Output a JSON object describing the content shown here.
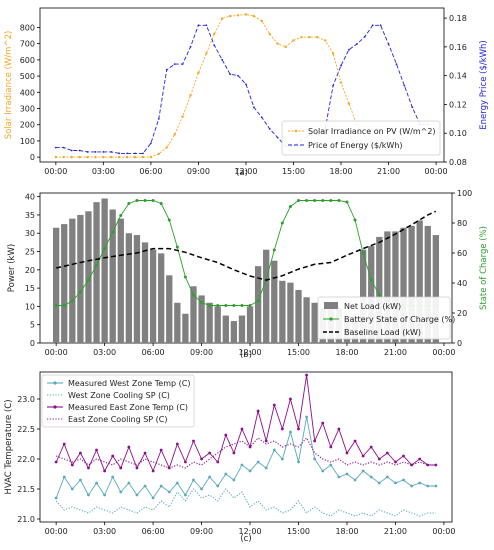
{
  "time_ticks": [
    "00:00",
    "03:00",
    "06:00",
    "09:00",
    "12:00",
    "15:00",
    "18:00",
    "21:00",
    "00:00"
  ],
  "colors": {
    "pv": "#f5a623",
    "price": "#2222dd",
    "net_bar": "#808080",
    "soc": "#2ca02c",
    "baseline": "#000000",
    "west": "#5aa9bd",
    "east": "#8b0e8b"
  },
  "chart_data": [
    {
      "type": "line",
      "caption": "(a)",
      "x_unit": "hour",
      "xlim": [
        -1,
        24.5
      ],
      "left_axis": {
        "label": "Solar Irradiance (W/m^2)",
        "ylim": [
          -30,
          920
        ],
        "ticks": [
          "0",
          "100",
          "200",
          "300",
          "400",
          "500",
          "600",
          "700",
          "800"
        ],
        "tick_values": [
          0,
          100,
          200,
          300,
          400,
          500,
          600,
          700,
          800
        ]
      },
      "right_axis": {
        "label": "Energy Price ($/kWh)",
        "ylim": [
          0.08,
          0.187
        ],
        "ticks": [
          "0.08",
          "0.10",
          "0.12",
          "0.14",
          "0.16",
          "0.18"
        ],
        "tick_values": [
          0.08,
          0.1,
          0.12,
          0.14,
          0.16,
          0.18
        ]
      },
      "legend": [
        "Solar Irradiance on PV (W/m^2)",
        "Price of Energy ($/kWh)"
      ],
      "legend_position": "lower-right",
      "series": [
        {
          "name": "Solar Irradiance on PV (W/m^2)",
          "axis": "left",
          "x": [
            0,
            0.5,
            1,
            1.5,
            2,
            2.5,
            3,
            3.5,
            4,
            4.5,
            5,
            5.5,
            6,
            6.5,
            7,
            7.5,
            8,
            8.5,
            9,
            9.5,
            10,
            10.5,
            11,
            11.5,
            12,
            12.5,
            13,
            13.5,
            14,
            14.5,
            15,
            15.5,
            16,
            16.5,
            17,
            17.5,
            18,
            18.5,
            19,
            19.5
          ],
          "y": [
            0,
            0,
            0,
            0,
            0,
            0,
            0,
            0,
            0,
            0,
            0,
            0,
            0,
            20,
            60,
            140,
            250,
            380,
            520,
            640,
            760,
            855,
            870,
            875,
            880,
            870,
            840,
            760,
            700,
            680,
            720,
            740,
            740,
            740,
            720,
            640,
            460,
            330,
            200,
            130
          ]
        },
        {
          "name": "Price of Energy ($/kWh)",
          "axis": "right",
          "x": [
            0,
            0.5,
            1,
            1.5,
            2,
            2.5,
            3,
            3.5,
            4,
            4.5,
            5,
            5.5,
            6,
            6.5,
            7,
            7.5,
            8,
            8.5,
            9,
            9.5,
            10,
            10.5,
            11,
            11.5,
            12,
            12.5,
            13,
            13.5,
            14,
            14.5,
            15,
            15.5,
            16,
            16.5,
            17,
            17.5,
            18,
            18.5,
            19,
            19.5,
            20,
            20.5,
            21,
            21.5,
            22,
            22.5,
            23,
            23.5
          ],
          "y": [
            0.09,
            0.09,
            0.088,
            0.088,
            0.087,
            0.087,
            0.087,
            0.087,
            0.086,
            0.086,
            0.086,
            0.086,
            0.093,
            0.11,
            0.144,
            0.148,
            0.148,
            0.16,
            0.175,
            0.175,
            0.161,
            0.151,
            0.141,
            0.14,
            0.134,
            0.118,
            0.111,
            0.103,
            0.097,
            0.091,
            0.091,
            0.095,
            0.099,
            0.099,
            0.103,
            0.133,
            0.147,
            0.158,
            0.162,
            0.167,
            0.175,
            0.175,
            0.162,
            0.148,
            0.133,
            0.118,
            0.106,
            0.106
          ]
        }
      ]
    },
    {
      "type": "bar",
      "caption": "(b)",
      "x_unit": "hour",
      "xlim": [
        -1,
        24.5
      ],
      "left_axis": {
        "label": "Power (kW)",
        "ylim": [
          0,
          41
        ],
        "ticks": [
          "0",
          "5",
          "10",
          "15",
          "20",
          "25",
          "30",
          "35",
          "40"
        ],
        "tick_values": [
          0,
          5,
          10,
          15,
          20,
          25,
          30,
          35,
          40
        ]
      },
      "right_axis": {
        "label": "State of Charge (%)",
        "ylim": [
          0,
          100
        ],
        "ticks": [
          "0",
          "20",
          "40",
          "60",
          "80",
          "100"
        ],
        "tick_values": [
          0,
          20,
          40,
          60,
          80,
          100
        ]
      },
      "legend": [
        "Net Load (kW)",
        "Battery State of Charge (%)",
        "Baseline Load (kW)"
      ],
      "legend_position": "lower-right",
      "series": [
        {
          "name": "Net Load (kW)",
          "type": "bar",
          "axis": "left",
          "x": [
            0,
            0.5,
            1,
            1.5,
            2,
            2.5,
            3,
            3.5,
            4,
            4.5,
            5,
            5.5,
            6,
            6.5,
            7,
            7.5,
            8,
            8.5,
            9,
            9.5,
            10,
            10.5,
            11,
            11.5,
            12,
            12.5,
            13,
            13.5,
            14,
            14.5,
            15,
            15.5,
            16,
            16.5,
            17,
            17.5,
            18,
            18.5,
            19,
            19.5,
            20,
            20.5,
            21,
            21.5,
            22,
            22.5,
            23,
            23.5
          ],
          "y": [
            31.5,
            32.5,
            34,
            35,
            36,
            38.5,
            39.5,
            36.5,
            34,
            30,
            29.5,
            27.5,
            25.5,
            24.5,
            18.5,
            11,
            8,
            15.5,
            13,
            11,
            10,
            7.5,
            6,
            7.5,
            10,
            21,
            25.5,
            22.5,
            17,
            16.5,
            14.5,
            12.5,
            11,
            9.5,
            10,
            9.5,
            6.5,
            7,
            25.5,
            26.5,
            29,
            30.5,
            30.5,
            31.5,
            32,
            33.5,
            32,
            29.5
          ]
        },
        {
          "name": "Battery State of Charge (%)",
          "type": "line",
          "axis": "right",
          "x": [
            0,
            0.5,
            1,
            1.5,
            2,
            2.5,
            3,
            3.5,
            4,
            4.5,
            5,
            5.5,
            6,
            6.5,
            7,
            7.5,
            8,
            8.5,
            9,
            9.5,
            10,
            10.5,
            11,
            11.5,
            12,
            12.5,
            13,
            13.5,
            14,
            14.5,
            15,
            15.5,
            16,
            16.5,
            17,
            17.5,
            18,
            18.5,
            19,
            19.5,
            20,
            20.5,
            21,
            21.5,
            22,
            22.5,
            23,
            23.5
          ],
          "y": [
            25,
            25,
            28,
            34,
            42,
            52,
            63,
            74,
            85,
            93,
            95,
            95,
            95,
            93,
            82,
            64,
            44,
            32,
            27,
            25,
            25,
            25,
            25,
            25,
            25,
            28,
            42,
            62,
            80,
            91,
            95,
            95,
            95,
            95,
            95,
            95,
            94,
            82,
            60,
            42,
            32,
            27,
            25,
            25,
            25,
            25,
            25,
            25
          ]
        },
        {
          "name": "Baseline Load (kW)",
          "type": "line",
          "axis": "left",
          "x": [
            0,
            1,
            2,
            3,
            4,
            5,
            6,
            7,
            8,
            9,
            10,
            11,
            12,
            13,
            14,
            15,
            16,
            17,
            18,
            19,
            20,
            21,
            22,
            23,
            23.5
          ],
          "y": [
            20.5,
            21.5,
            22.5,
            23.3,
            24,
            24.6,
            25.8,
            25.8,
            24.8,
            23.3,
            22,
            20,
            18.3,
            17.2,
            18.4,
            20.2,
            21.5,
            22,
            24,
            25.8,
            27.5,
            29.8,
            32.3,
            35,
            36
          ]
        }
      ]
    },
    {
      "type": "line",
      "caption": "(c)",
      "x_unit": "hour",
      "xlim": [
        -1,
        24.5
      ],
      "ylabel": "HVAC Temperature (C)",
      "ylim": [
        20.95,
        23.45
      ],
      "ticks": [
        "21.0",
        "21.5",
        "22.0",
        "22.5",
        "23.0"
      ],
      "tick_values": [
        21.0,
        21.5,
        22.0,
        22.5,
        23.0
      ],
      "legend": [
        "Measured West Zone Temp (C)",
        "West Zone Cooling SP (C)",
        "Measured East Zone Temp (C)",
        "East Zone Cooling SP (C)"
      ],
      "legend_position": "upper-left",
      "series": [
        {
          "name": "Measured West Zone Temp (C)",
          "style": "solid-markers",
          "x": [
            0,
            0.5,
            1,
            1.5,
            2,
            2.5,
            3,
            3.5,
            4,
            4.5,
            5,
            5.5,
            6,
            6.5,
            7,
            7.5,
            8,
            8.5,
            9,
            9.5,
            10,
            10.5,
            11,
            11.5,
            12,
            12.5,
            13,
            13.5,
            14,
            14.5,
            15,
            15.5,
            16,
            16.5,
            17,
            17.5,
            18,
            18.5,
            19,
            19.5,
            20,
            20.5,
            21,
            21.5,
            22,
            22.5,
            23,
            23.5
          ],
          "y": [
            21.35,
            21.7,
            21.5,
            21.65,
            21.4,
            21.6,
            21.4,
            21.7,
            21.45,
            21.6,
            21.4,
            21.55,
            21.35,
            21.55,
            21.45,
            21.6,
            21.4,
            21.65,
            21.5,
            21.7,
            21.55,
            21.75,
            21.65,
            21.9,
            21.8,
            21.95,
            21.85,
            22.15,
            22.0,
            22.45,
            21.95,
            22.7,
            22.0,
            21.8,
            21.9,
            21.7,
            21.75,
            21.65,
            21.8,
            21.7,
            21.6,
            21.7,
            21.6,
            21.65,
            21.55,
            21.6,
            21.55,
            21.55
          ]
        },
        {
          "name": "West Zone Cooling SP (C)",
          "style": "dotted",
          "x": [
            0,
            0.5,
            1,
            1.5,
            2,
            2.5,
            3,
            3.5,
            4,
            4.5,
            5,
            5.5,
            6,
            6.5,
            7,
            7.5,
            8,
            8.5,
            9,
            9.5,
            10,
            10.5,
            11,
            11.5,
            12,
            12.5,
            13,
            13.5,
            14,
            14.5,
            15,
            15.5,
            16,
            16.5,
            17,
            17.5,
            18,
            18.5,
            19,
            19.5,
            20,
            20.5,
            21,
            21.5,
            22,
            22.5,
            23,
            23.5
          ],
          "y": [
            21.3,
            21.15,
            21.2,
            21.15,
            21.1,
            21.2,
            21.15,
            21.1,
            21.2,
            21.15,
            21.1,
            21.2,
            21.15,
            21.3,
            21.2,
            21.45,
            21.3,
            21.5,
            21.35,
            21.4,
            21.3,
            21.5,
            21.35,
            21.45,
            21.2,
            21.3,
            21.15,
            21.2,
            21.1,
            21.15,
            21.3,
            21.1,
            21.2,
            21.1,
            21.05,
            21.15,
            21.1,
            21.05,
            21.1,
            21.05,
            21.15,
            21.1,
            21.05,
            21.15,
            21.1,
            21.05,
            21.1,
            21.1
          ]
        },
        {
          "name": "Measured East Zone Temp (C)",
          "style": "solid-markers",
          "x": [
            0,
            0.5,
            1,
            1.5,
            2,
            2.5,
            3,
            3.5,
            4,
            4.5,
            5,
            5.5,
            6,
            6.5,
            7,
            7.5,
            8,
            8.5,
            9,
            9.5,
            10,
            10.5,
            11,
            11.5,
            12,
            12.5,
            13,
            13.5,
            14,
            14.5,
            15,
            15.5,
            16,
            16.5,
            17,
            17.5,
            18,
            18.5,
            19,
            19.5,
            20,
            20.5,
            21,
            21.5,
            22,
            22.5,
            23,
            23.5
          ],
          "y": [
            21.95,
            22.25,
            21.9,
            22.1,
            21.85,
            22.15,
            21.8,
            22.05,
            21.85,
            22.2,
            21.85,
            22.1,
            21.8,
            22.15,
            21.85,
            22.25,
            21.95,
            22.3,
            22.0,
            22.1,
            21.95,
            22.4,
            22.1,
            22.5,
            22.2,
            22.8,
            22.3,
            22.9,
            22.5,
            23.0,
            22.5,
            23.4,
            22.3,
            22.6,
            22.2,
            22.5,
            22.1,
            22.3,
            22.05,
            22.2,
            22.0,
            22.1,
            21.95,
            22.05,
            21.9,
            22.0,
            21.9,
            21.9
          ]
        },
        {
          "name": "East Zone Cooling SP (C)",
          "style": "dotted",
          "x": [
            0,
            0.5,
            1,
            1.5,
            2,
            2.5,
            3,
            3.5,
            4,
            4.5,
            5,
            5.5,
            6,
            6.5,
            7,
            7.5,
            8,
            8.5,
            9,
            9.5,
            10,
            10.5,
            11,
            11.5,
            12,
            12.5,
            13,
            13.5,
            14,
            14.5,
            15,
            15.5,
            16,
            16.5,
            17,
            17.5,
            18,
            18.5,
            19,
            19.5,
            20,
            20.5,
            21,
            21.5,
            22,
            22.5,
            23,
            23.5
          ],
          "y": [
            22.05,
            22.0,
            21.95,
            22.0,
            21.9,
            22.0,
            21.95,
            21.9,
            22.0,
            21.95,
            21.9,
            22.0,
            21.95,
            21.9,
            21.85,
            21.9,
            21.85,
            21.95,
            21.9,
            22.0,
            22.1,
            22.2,
            22.25,
            22.3,
            22.2,
            22.35,
            22.25,
            22.3,
            22.2,
            22.25,
            22.2,
            22.35,
            22.1,
            22.0,
            21.95,
            22.0,
            21.9,
            21.95,
            21.9,
            21.95,
            21.9,
            21.95,
            21.9,
            21.95,
            21.9,
            21.95,
            21.9,
            21.9
          ]
        }
      ]
    }
  ]
}
